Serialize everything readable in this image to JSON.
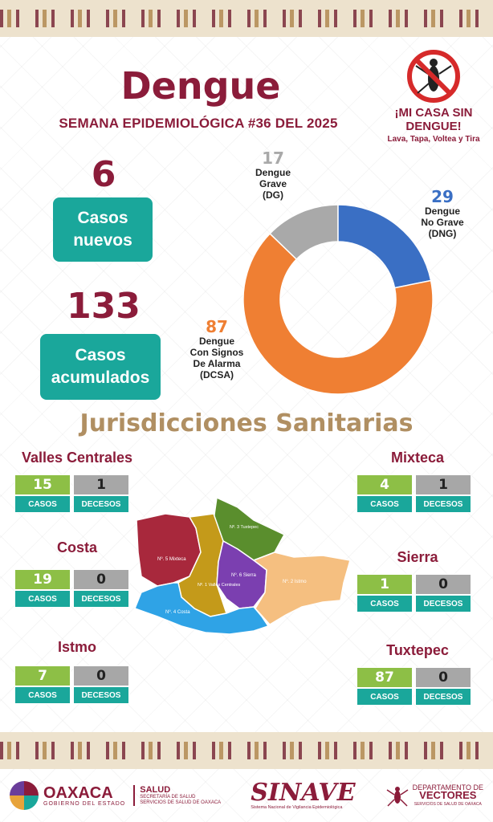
{
  "header": {
    "title": "Dengue",
    "subtitle": "SEMANA EPIDEMIOLÓGICA #36 DEL 2025"
  },
  "campaign": {
    "line1": "¡MI CASA SIN DENGUE!",
    "line2": "Lava, Tapa, Voltea y Tira",
    "icon": "no-mosquito-icon"
  },
  "totals": {
    "new_cases_value": "6",
    "new_cases_label": "Casos nuevos",
    "accumulated_value": "133",
    "accumulated_label": "Casos acumulados"
  },
  "chart_data": {
    "type": "pie",
    "style": "donut",
    "categories": [
      "Dengue Grave (DG)",
      "Dengue No Grave (DNG)",
      "Dengue Con Signos De Alarma (DCSA)"
    ],
    "values": [
      17,
      29,
      87
    ],
    "colors": [
      "#a9a9a9",
      "#3a6fc4",
      "#ef7f33"
    ]
  },
  "pie_labels": {
    "dg": {
      "num": "17",
      "text1": "Dengue",
      "text2": "Grave",
      "text3": "(DG)"
    },
    "dng": {
      "num": "29",
      "text1": "Dengue",
      "text2": "No Grave",
      "text3": "(DNG)"
    },
    "dcsa": {
      "num": "87",
      "text1": "Dengue",
      "text2": "Con Signos",
      "text3": "De Alarma",
      "text4": "(DCSA)"
    }
  },
  "section_title": "Jurisdicciones Sanitarias",
  "case_label": "CASOS",
  "death_label": "DECESOS",
  "jurisdictions": [
    {
      "name": "Valles Centrales",
      "cases": "15",
      "deaths": "1"
    },
    {
      "name": "Costa",
      "cases": "19",
      "deaths": "0"
    },
    {
      "name": "Istmo",
      "cases": "7",
      "deaths": "0"
    },
    {
      "name": "Mixteca",
      "cases": "4",
      "deaths": "1"
    },
    {
      "name": "Sierra",
      "cases": "1",
      "deaths": "0"
    },
    {
      "name": "Tuxtepec",
      "cases": "87",
      "deaths": "0"
    }
  ],
  "map": {
    "regions": [
      {
        "label": "Nº. 5 Mixteca",
        "color": "#a8283c"
      },
      {
        "label": "Nº. 3 Tuxtepec",
        "color": "#5a8e2d"
      },
      {
        "label": "Nº. 1 Valles Centrales",
        "color": "#c49a1a"
      },
      {
        "label": "Nº. 6 Sierra",
        "color": "#7b3fb0"
      },
      {
        "label": "Nº. 2 Istmo",
        "color": "#f5bf80"
      },
      {
        "label": "Nº. 4 Costa",
        "color": "#2fa3e6"
      }
    ]
  },
  "footer": {
    "oaxaca": "OAXACA",
    "oaxaca_sub": "GOBIERNO DEL ESTADO",
    "salud": "SALUD",
    "salud_sub1": "SECRETARÍA DE SALUD",
    "salud_sub2": "SERVICIOS DE SALUD DE OAXACA",
    "sinave": "SINAVE",
    "sinave_sub": "Sistema Nacional de Vigilancia Epidemiológica",
    "vectores1": "DEPARTAMENTO DE",
    "vectores2": "VECTORES",
    "vectores3": "SERVICIOS DE SALUD DE OAXACA"
  }
}
